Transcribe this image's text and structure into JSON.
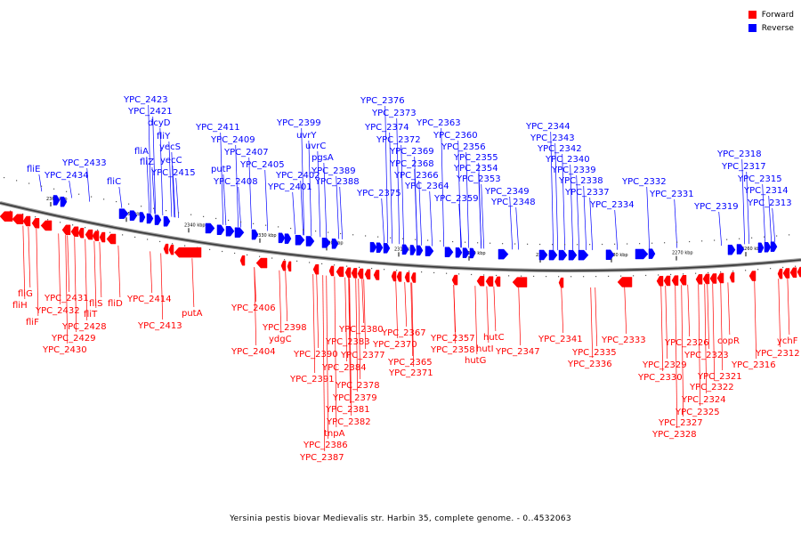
{
  "legend": {
    "forward": {
      "label": "Forward",
      "color": "#ff0000"
    },
    "reverse": {
      "label": "Reverse",
      "color": "#0000ff"
    }
  },
  "caption": "Yersinia pestis biovar Medievalis str. Harbin 35, complete genome. - 0..4532063",
  "chart_data": {
    "type": "genome-map",
    "axis_ticks": [
      "2360 kbp",
      "2350 kbp",
      "2340 kbp",
      "2330 kbp",
      "2320 kbp",
      "2310 kbp",
      "2300 kbp",
      "2290 kbp",
      "2280 kbp",
      "2270 kbp",
      "2260 kbp"
    ],
    "reverse_genes": [
      "fliE",
      "YPC_2434",
      "YPC_2433",
      "fliC",
      "YPC_2423",
      "YPC_2421",
      "dcyD",
      "fliA",
      "fliZ",
      "fliY",
      "yecS",
      "yecC",
      "YPC_2415",
      "YPC_2411",
      "YPC_2409",
      "putP",
      "YPC_2407",
      "YPC_2408",
      "YPC_2405",
      "YPC_2399",
      "uvrY",
      "uvrC",
      "pgsA",
      "YPC_2402",
      "YPC_2401",
      "YPC_2389",
      "YPC_2388",
      "YPC_2376",
      "YPC_2373",
      "YPC_2374",
      "YPC_2372",
      "YPC_2375",
      "YPC_2369",
      "YPC_2368",
      "YPC_2366",
      "YPC_2364",
      "YPC_2363",
      "YPC_2360",
      "YPC_2356",
      "YPC_2355",
      "YPC_2354",
      "YPC_2353",
      "YPC_2359",
      "YPC_2349",
      "YPC_2348",
      "YPC_2344",
      "YPC_2343",
      "YPC_2342",
      "YPC_2340",
      "YPC_2339",
      "YPC_2338",
      "YPC_2337",
      "YPC_2334",
      "YPC_2332",
      "YPC_2331",
      "YPC_2319",
      "YPC_2318",
      "YPC_2317",
      "YPC_2315",
      "YPC_2314",
      "YPC_2313"
    ],
    "forward_genes": [
      "fliG",
      "fliH",
      "fliF",
      "YPC_2431",
      "YPC_2432",
      "YPC_2428",
      "YPC_2429",
      "YPC_2430",
      "fliT",
      "fliS",
      "fliD",
      "YPC_2414",
      "YPC_2413",
      "putA",
      "YPC_2406",
      "YPC_2404",
      "YPC_2398",
      "ydgC",
      "YPC_2390",
      "YPC_2391",
      "YPC_2380",
      "YPC_2383",
      "YPC_2377",
      "YPC_2384",
      "YPC_2378",
      "YPC_2379",
      "YPC_2381",
      "YPC_2382",
      "tnpA",
      "YPC_2386",
      "YPC_2387",
      "YPC_2367",
      "YPC_2370",
      "YPC_2371",
      "YPC_2365",
      "YPC_2357",
      "YPC_2358",
      "hutC",
      "hutI",
      "hutG",
      "YPC_2347",
      "YPC_2341",
      "YPC_2333",
      "YPC_2335",
      "YPC_2336",
      "YPC_2329",
      "YPC_2330",
      "YPC_2326",
      "YPC_2323",
      "copR",
      "YPC_2321",
      "YPC_2322",
      "YPC_2324",
      "YPC_2325",
      "YPC_2327",
      "YPC_2328",
      "YPC_2316",
      "ychF",
      "YPC_2312"
    ]
  }
}
